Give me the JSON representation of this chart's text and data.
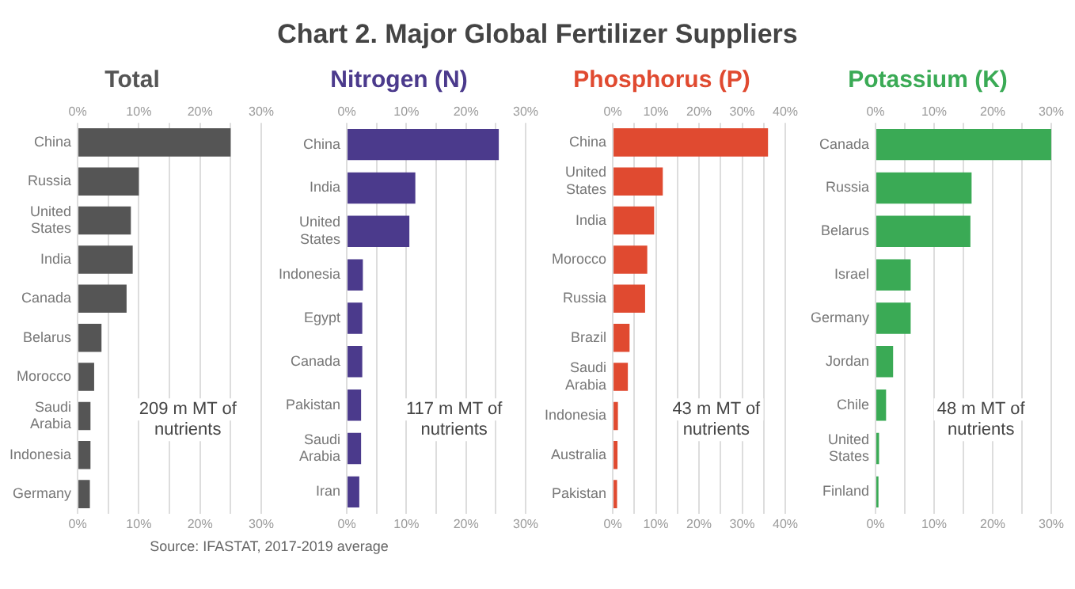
{
  "chart_data": [
    {
      "type": "other",
      "title": "Chart 2. Major Global Fertilizer Suppliers",
      "annotations": [
        "Source: IFASTAT, 2017-2019 average"
      ]
    },
    {
      "type": "bar",
      "orientation": "horizontal",
      "title": "Total",
      "categories": [
        "China",
        "Russia",
        "United States",
        "India",
        "Canada",
        "Belarus",
        "Morocco",
        "Saudi Arabia",
        "Indonesia",
        "Germany"
      ],
      "values": [
        25,
        10,
        8.7,
        9,
        8,
        3.9,
        2.7,
        2.1,
        2.1,
        2
      ],
      "color": "#555555",
      "xlim": [
        0,
        30
      ],
      "xticks": [
        {
          "value": 0,
          "label": "0%"
        },
        {
          "value": 5,
          "label": null
        },
        {
          "value": 10,
          "label": "10%"
        },
        {
          "value": 15,
          "label": null
        },
        {
          "value": 20,
          "label": "20%"
        },
        {
          "value": 25,
          "label": null
        },
        {
          "value": 30,
          "label": "30%"
        }
      ],
      "x2lim": [
        0,
        30
      ],
      "x2ticks": [
        {
          "value": 0,
          "label": "0%"
        },
        {
          "value": 5,
          "label": null
        },
        {
          "value": 10,
          "label": "10%"
        },
        {
          "value": 15,
          "label": null
        },
        {
          "value": 20,
          "label": "20%"
        },
        {
          "value": 25,
          "label": null
        },
        {
          "value": 30,
          "label": "30%"
        }
      ],
      "grid": "x",
      "annotations": [
        "209 m MT of nutrients"
      ]
    },
    {
      "type": "bar",
      "orientation": "horizontal",
      "title": "Nitrogen (N)",
      "categories": [
        "China",
        "India",
        "United States",
        "Indonesia",
        "Egypt",
        "Canada",
        "Pakistan",
        "Saudi Arabia",
        "Iran"
      ],
      "values": [
        25.5,
        11.5,
        10.5,
        2.7,
        2.6,
        2.6,
        2.4,
        2.4,
        2.1
      ],
      "color": "#4b3a8c",
      "xlim": [
        0,
        30
      ],
      "xticks": [
        {
          "value": 0,
          "label": "0%"
        },
        {
          "value": 5,
          "label": null
        },
        {
          "value": 10,
          "label": "10%"
        },
        {
          "value": 15,
          "label": null
        },
        {
          "value": 20,
          "label": "20%"
        },
        {
          "value": 25,
          "label": null
        },
        {
          "value": 30,
          "label": "30%"
        }
      ],
      "x2lim": [
        0,
        30
      ],
      "x2ticks": [
        {
          "value": 0,
          "label": "0%"
        },
        {
          "value": 5,
          "label": null
        },
        {
          "value": 10,
          "label": "10%"
        },
        {
          "value": 15,
          "label": null
        },
        {
          "value": 20,
          "label": "20%"
        },
        {
          "value": 25,
          "label": null
        },
        {
          "value": 30,
          "label": "30%"
        }
      ],
      "grid": "x",
      "annotations": [
        "117 m MT of nutrients"
      ]
    },
    {
      "type": "bar",
      "orientation": "horizontal",
      "title": "Phosphorus (P)",
      "categories": [
        "China",
        "United States",
        "India",
        "Morocco",
        "Russia",
        "Brazil",
        "Saudi Arabia",
        "Indonesia",
        "Australia",
        "Pakistan"
      ],
      "values": [
        36,
        11.6,
        9.6,
        8,
        7.5,
        3.9,
        3.5,
        1.2,
        1.1,
        1
      ],
      "color": "#e04a30",
      "xlim": [
        0,
        40
      ],
      "xticks": [
        {
          "value": 0,
          "label": "0%"
        },
        {
          "value": 5,
          "label": null
        },
        {
          "value": 10,
          "label": "10%"
        },
        {
          "value": 15,
          "label": null
        },
        {
          "value": 20,
          "label": "20%"
        },
        {
          "value": 25,
          "label": null
        },
        {
          "value": 30,
          "label": "30%"
        },
        {
          "value": 35,
          "label": null
        },
        {
          "value": 40,
          "label": "40%"
        }
      ],
      "x2lim": [
        0,
        40
      ],
      "x2ticks": [
        {
          "value": 0,
          "label": "0%"
        },
        {
          "value": 5,
          "label": null
        },
        {
          "value": 10,
          "label": "10%"
        },
        {
          "value": 15,
          "label": null
        },
        {
          "value": 20,
          "label": "20%"
        },
        {
          "value": 25,
          "label": null
        },
        {
          "value": 30,
          "label": "30%"
        },
        {
          "value": 35,
          "label": null
        },
        {
          "value": 40,
          "label": "40%"
        }
      ],
      "grid": "x",
      "annotations": [
        "43 m MT of nutrients"
      ]
    },
    {
      "type": "bar",
      "orientation": "horizontal",
      "title": "Potassium (K)",
      "categories": [
        "Canada",
        "Russia",
        "Belarus",
        "Israel",
        "Germany",
        "Jordan",
        "Chile",
        "United States",
        "Finland"
      ],
      "values": [
        30,
        16.4,
        16.2,
        6,
        6,
        3,
        1.8,
        0.6,
        0.5
      ],
      "color": "#3aaa55",
      "xlim": [
        0,
        30
      ],
      "xticks": [
        {
          "value": 0,
          "label": "0%"
        },
        {
          "value": 5,
          "label": null
        },
        {
          "value": 10,
          "label": "10%"
        },
        {
          "value": 15,
          "label": null
        },
        {
          "value": 20,
          "label": "20%"
        },
        {
          "value": 25,
          "label": null
        },
        {
          "value": 30,
          "label": "30%"
        }
      ],
      "x2lim": [
        0,
        30
      ],
      "x2ticks": [
        {
          "value": 0,
          "label": "0%"
        },
        {
          "value": 5,
          "label": null
        },
        {
          "value": 10,
          "label": "10%"
        },
        {
          "value": 15,
          "label": null
        },
        {
          "value": 20,
          "label": "20%"
        },
        {
          "value": 25,
          "label": null
        },
        {
          "value": 30,
          "label": "30%"
        }
      ],
      "grid": "x",
      "annotations": [
        "48 m MT of nutrients"
      ]
    }
  ]
}
